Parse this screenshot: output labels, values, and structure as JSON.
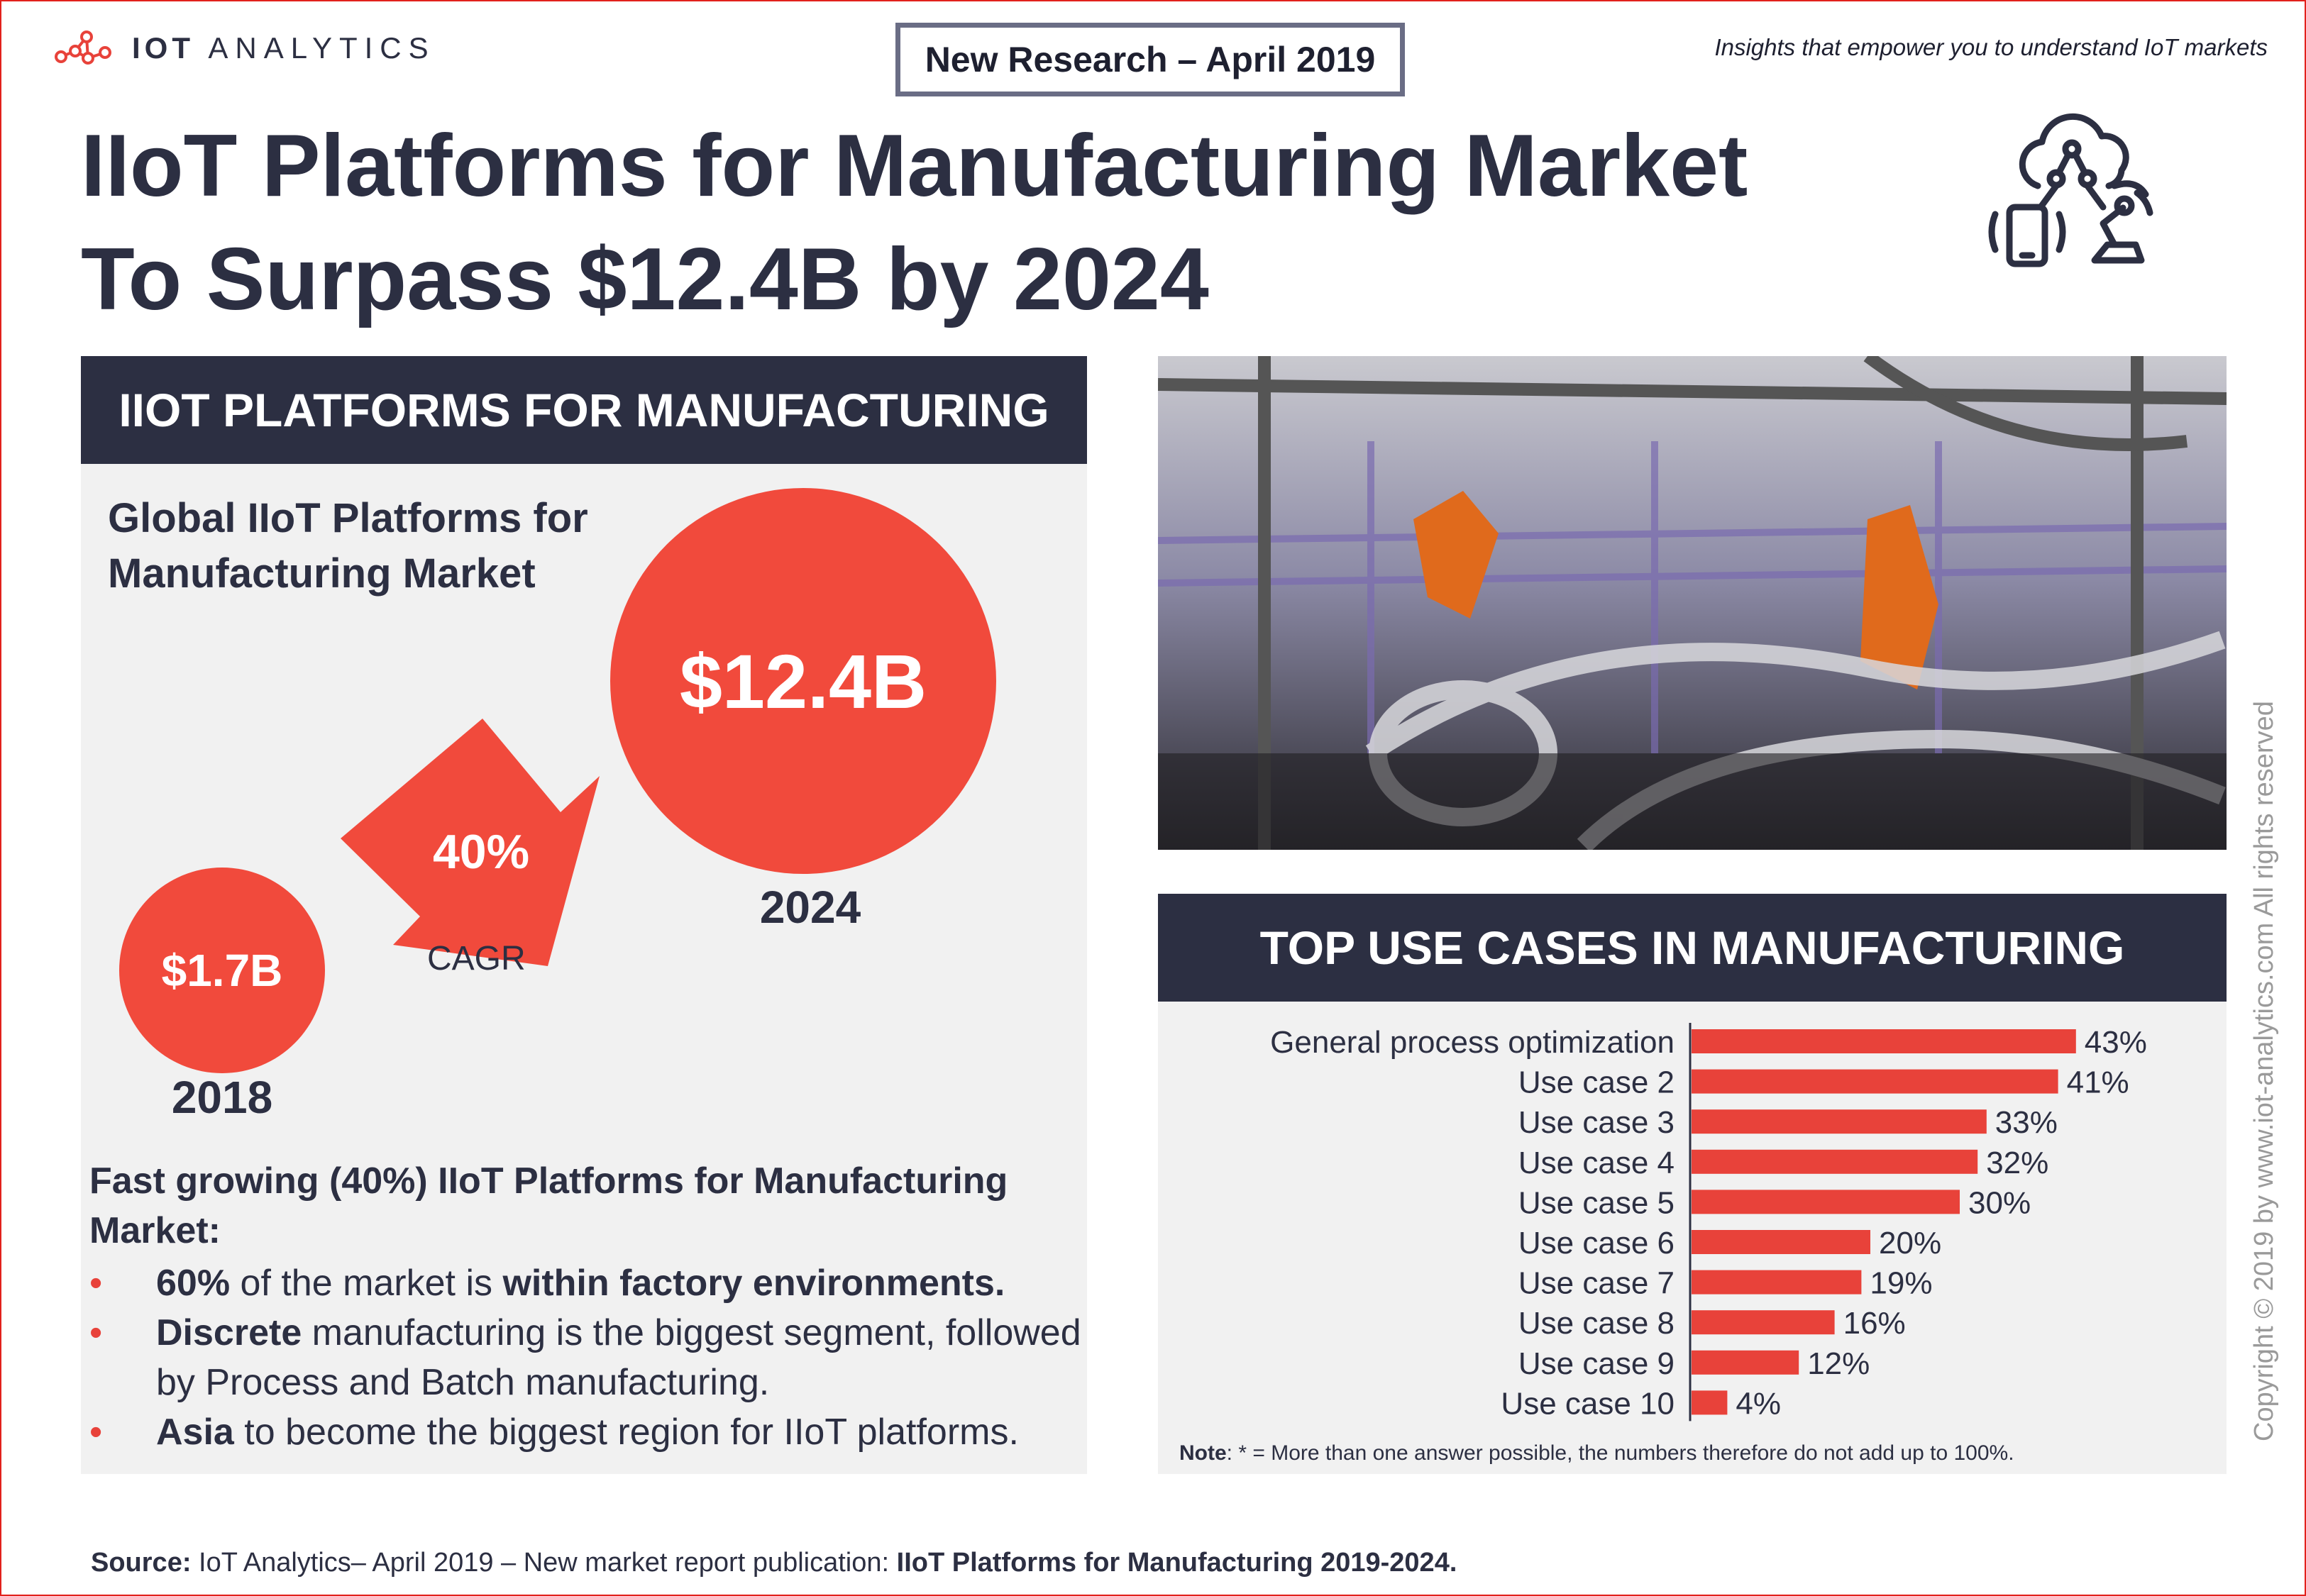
{
  "header": {
    "logo_text_bold": "IOT",
    "logo_text_light": "ANALYTICS",
    "badge": "New Research – April 2019",
    "tagline": "Insights that empower you to understand IoT markets",
    "title_line1": "IIoT Platforms for Manufacturing Market",
    "title_line2": "To Surpass $12.4B by 2024",
    "icon": "cloud-iot-devices-icon"
  },
  "left_panel": {
    "header": "IIOT PLATFORMS FOR MANUFACTURING",
    "market_label": "Global IIoT Platforms for Manufacturing Market",
    "cagr_value": "40%",
    "cagr_label": "CAGR",
    "fact_heading": "Fast growing (40%) IIoT Platforms for Manufacturing Market:",
    "bullets": [
      {
        "bold1": "60%",
        "text1": " of the market is ",
        "bold2": "within factory environments.",
        "text2": ""
      },
      {
        "bold1": "Discrete",
        "text1": " manufacturing is the biggest segment, followed by Process and Batch manufacturing.",
        "bold2": "",
        "text2": ""
      },
      {
        "bold1": "Asia",
        "text1": " to become the biggest region for IIoT platforms.",
        "bold2": "",
        "text2": ""
      }
    ]
  },
  "right_panel": {
    "photo": "industrial-robots-car-assembly-photo",
    "header": "TOP USE CASES IN MANUFACTURING",
    "note_bold": "Note",
    "note_text": ": * = More than one answer possible, the numbers therefore do not add up to 100%."
  },
  "footer": {
    "source_bold": "Source:",
    "source_text": " IoT Analytics– April 2019 – New market report publication: ",
    "source_report": "IIoT Platforms for Manufacturing 2019-2024.",
    "copyright": "Copyright © 2019 by www.iot-analytics.com All rights reserved"
  },
  "colors": {
    "accent_red": "#f14a3c",
    "navy": "#2c2f42",
    "panel_bg": "#f1f1f1",
    "border_red": "#e2211c",
    "bar_red": "#e8423a"
  },
  "chart_data": [
    {
      "type": "bubble",
      "title": "Global IIoT Platforms for Manufacturing Market",
      "categories": [
        "2018",
        "2024"
      ],
      "values": [
        1.7,
        12.4
      ],
      "labels": [
        "$1.7B",
        "$12.4B"
      ],
      "unit": "USD billions",
      "cagr": "40%"
    },
    {
      "type": "bar",
      "orientation": "horizontal",
      "title": "TOP USE CASES IN MANUFACTURING",
      "categories": [
        "General process optimization",
        "Use case 2",
        "Use case 3",
        "Use case 4",
        "Use case 5",
        "Use case 6",
        "Use case 7",
        "Use case 8",
        "Use case 9",
        "Use case 10"
      ],
      "values": [
        43,
        41,
        33,
        32,
        30,
        20,
        19,
        16,
        12,
        4
      ],
      "value_labels": [
        "43%",
        "41%",
        "33%",
        "32%",
        "30%",
        "20%",
        "19%",
        "16%",
        "12%",
        "4%"
      ],
      "xlim": [
        0,
        50
      ],
      "grid": false
    }
  ]
}
